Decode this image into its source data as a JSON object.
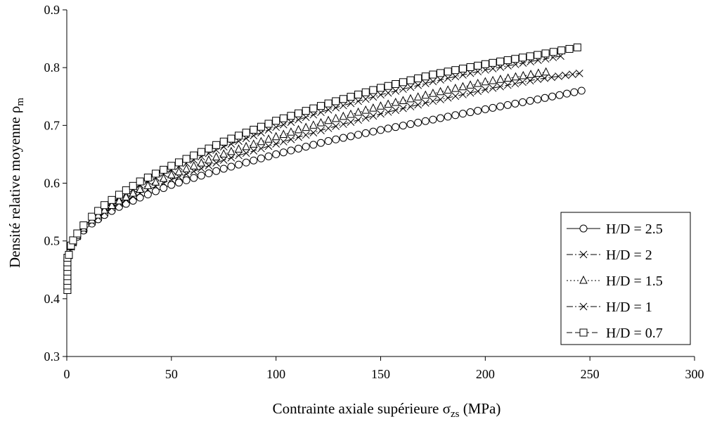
{
  "chart_data": {
    "type": "line",
    "xlabel": "Contrainte axiale supérieure σ",
    "xlabel_sub": "zs",
    "xlabel_unit": " (MPa)",
    "ylabel": "Densité relative moyenne ρ",
    "ylabel_sub": "m",
    "xlim": [
      0,
      300
    ],
    "ylim": [
      0.3,
      0.9
    ],
    "xticks": [
      "0",
      "50",
      "100",
      "150",
      "200",
      "250",
      "300"
    ],
    "yticks": [
      "0.3",
      "0.4",
      "0.5",
      "0.6",
      "0.7",
      "0.8",
      "0.9"
    ],
    "grid": false,
    "legend_position": "right-lower",
    "series": [
      {
        "name": "H/D = 2.5",
        "marker": "circle",
        "dash": "solid",
        "x": [
          0,
          0.5,
          1,
          2,
          3,
          5,
          8,
          12,
          18,
          25,
          35,
          50,
          75,
          100,
          125,
          150,
          175,
          200,
          225,
          246
        ],
        "y": [
          0.415,
          0.46,
          0.475,
          0.49,
          0.497,
          0.507,
          0.518,
          0.53,
          0.545,
          0.559,
          0.575,
          0.597,
          0.625,
          0.65,
          0.673,
          0.692,
          0.71,
          0.728,
          0.745,
          0.76
        ]
      },
      {
        "name": "H/D = 2",
        "marker": "cross",
        "dash": "dashdot",
        "x": [
          0,
          0.5,
          1,
          2,
          3,
          5,
          8,
          12,
          18,
          25,
          35,
          50,
          75,
          100,
          125,
          150,
          175,
          200,
          225,
          245
        ],
        "y": [
          0.415,
          0.46,
          0.475,
          0.49,
          0.497,
          0.508,
          0.52,
          0.533,
          0.549,
          0.565,
          0.583,
          0.606,
          0.64,
          0.668,
          0.695,
          0.72,
          0.742,
          0.762,
          0.78,
          0.79
        ]
      },
      {
        "name": "H/D = 1.5",
        "marker": "triangle",
        "dash": "dotted",
        "x": [
          0,
          0.5,
          1,
          2,
          3,
          5,
          8,
          12,
          18,
          25,
          35,
          50,
          75,
          100,
          125,
          150,
          175,
          200,
          229
        ],
        "y": [
          0.415,
          0.46,
          0.475,
          0.49,
          0.498,
          0.509,
          0.522,
          0.536,
          0.553,
          0.569,
          0.589,
          0.614,
          0.65,
          0.68,
          0.708,
          0.733,
          0.755,
          0.775,
          0.792
        ]
      },
      {
        "name": "H/D = 1",
        "marker": "cross",
        "dash": "dashdot",
        "x": [
          0,
          0.5,
          1,
          2,
          3,
          5,
          8,
          12,
          18,
          25,
          35,
          50,
          75,
          100,
          125,
          150,
          175,
          200,
          236
        ],
        "y": [
          0.415,
          0.46,
          0.476,
          0.491,
          0.5,
          0.511,
          0.524,
          0.539,
          0.558,
          0.575,
          0.597,
          0.623,
          0.663,
          0.697,
          0.727,
          0.753,
          0.776,
          0.796,
          0.82
        ]
      },
      {
        "name": "H/D = 0.7",
        "marker": "square",
        "dash": "dashed",
        "x": [
          0,
          0.5,
          1,
          2,
          3,
          5,
          8,
          12,
          18,
          25,
          35,
          50,
          75,
          100,
          125,
          150,
          175,
          200,
          225,
          244
        ],
        "y": [
          0.415,
          0.46,
          0.476,
          0.492,
          0.501,
          0.513,
          0.527,
          0.542,
          0.562,
          0.58,
          0.603,
          0.63,
          0.672,
          0.708,
          0.738,
          0.765,
          0.788,
          0.806,
          0.822,
          0.835
        ]
      }
    ]
  }
}
